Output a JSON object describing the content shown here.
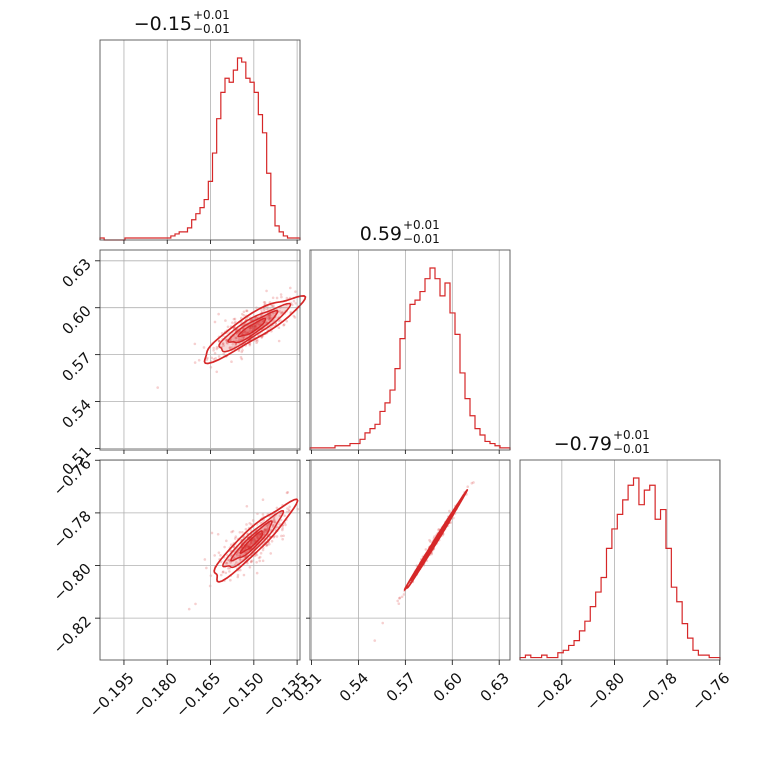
{
  "chart_data": {
    "type": "corner",
    "series_color": "#d62728",
    "parameters": [
      {
        "title": {
          "median": "−0.15",
          "plus": "+0.01",
          "minus": "−0.01"
        }
      },
      {
        "title": {
          "median": "0.59",
          "plus": "+0.01",
          "minus": "−0.01"
        }
      },
      {
        "title": {
          "median": "−0.79",
          "plus": "+0.01",
          "minus": "−0.01"
        }
      }
    ],
    "axes": {
      "p0": {
        "range": [
          -0.2033,
          -0.134
        ],
        "ticks": [
          -0.195,
          -0.18,
          -0.165,
          -0.15,
          -0.135
        ],
        "tick_labels": [
          "−0.195",
          "−0.180",
          "−0.165",
          "−0.150",
          "−0.135"
        ]
      },
      "p1": {
        "range": [
          0.509,
          0.6369
        ],
        "ticks": [
          0.51,
          0.54,
          0.57,
          0.6,
          0.63
        ],
        "tick_labels": [
          "0.51",
          "0.54",
          "0.57",
          "0.60",
          "0.63"
        ]
      },
      "p2": {
        "range": [
          -0.8359,
          -0.7599
        ],
        "ticks": [
          -0.82,
          -0.8,
          -0.78,
          -0.76
        ],
        "tick_labels": [
          "−0.82",
          "−0.80",
          "−0.78",
          "−0.76"
        ]
      }
    },
    "histograms": [
      {
        "param": 0,
        "counts": [
          1,
          0,
          0,
          0,
          0,
          0,
          1,
          1,
          1,
          1,
          1,
          1,
          1,
          1,
          1,
          1,
          1,
          2,
          3,
          4,
          4,
          6,
          10,
          13,
          16,
          20,
          29,
          43,
          60,
          73,
          80,
          78,
          84,
          90,
          88,
          80,
          78,
          73,
          62,
          53,
          33,
          17,
          7,
          4,
          2,
          1,
          1,
          1
        ]
      },
      {
        "param": 1,
        "counts": [
          1,
          1,
          1,
          1,
          1,
          2,
          2,
          2,
          3,
          3,
          5,
          8,
          10,
          12,
          18,
          22,
          28,
          38,
          52,
          60,
          68,
          70,
          74,
          80,
          85,
          80,
          72,
          78,
          64,
          54,
          36,
          24,
          16,
          10,
          7,
          4,
          3,
          2,
          1,
          1
        ]
      },
      {
        "param": 2,
        "counts": [
          1,
          2,
          1,
          1,
          2,
          1,
          1,
          3,
          4,
          6,
          8,
          12,
          16,
          22,
          28,
          34,
          46,
          54,
          60,
          66,
          72,
          75,
          64,
          70,
          72,
          58,
          62,
          46,
          30,
          24,
          15,
          9,
          4,
          2,
          2,
          1,
          1
        ]
      }
    ],
    "pairs": [
      {
        "x_param": 0,
        "y_param": 1,
        "center": [
          -0.1505,
          0.587
        ],
        "slope": 1.15,
        "spread_along": 0.0085,
        "spread_across": 0.0024
      },
      {
        "x_param": 0,
        "y_param": 2,
        "center": [
          -0.1505,
          -0.791
        ],
        "slope": 1.05,
        "spread_along": 0.0085,
        "spread_across": 0.0022
      },
      {
        "x_param": 1,
        "y_param": 2,
        "center": [
          0.588,
          -0.792
        ],
        "slope": 0.96,
        "spread_along": 0.017,
        "spread_across": 0.0006
      }
    ]
  }
}
